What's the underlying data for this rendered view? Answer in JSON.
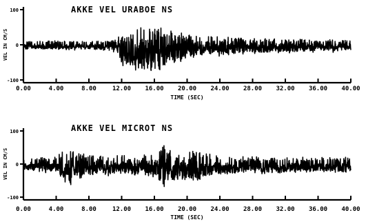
{
  "chart_data": [
    {
      "type": "line",
      "title": "AKKE VEL URABOE NS",
      "xlabel": "TIME (SEC)",
      "ylabel": "VEL IN CM/S",
      "xlim": [
        0,
        40
      ],
      "ylim": [
        -100,
        100
      ],
      "x_ticks": [
        "0.00",
        "4.00",
        "8.00",
        "12.00",
        "16.00",
        "20.00",
        "24.00",
        "28.00",
        "32.00",
        "36.00",
        "40.00"
      ],
      "y_ticks": [
        "-100",
        "0",
        "100"
      ],
      "grid": false,
      "envelope": {
        "x": [
          0,
          2,
          4,
          6,
          8,
          10,
          11.5,
          12,
          13,
          14,
          15,
          16,
          17,
          18,
          19,
          20,
          22,
          24,
          26,
          28,
          30,
          32,
          34,
          36,
          38,
          40
        ],
        "amplitude": [
          12,
          14,
          15,
          14,
          14,
          16,
          20,
          55,
          65,
          75,
          80,
          72,
          65,
          58,
          48,
          40,
          32,
          28,
          26,
          24,
          22,
          22,
          20,
          18,
          18,
          16
        ]
      }
    },
    {
      "type": "line",
      "title": "AKKE VEL MICROT NS",
      "xlabel": "TIME (SEC)",
      "ylabel": "VEL IN CM/S",
      "xlim": [
        0,
        40
      ],
      "ylim": [
        -100,
        100
      ],
      "x_ticks": [
        "0.00",
        "4.00",
        "8.00",
        "12.00",
        "16.00",
        "20.00",
        "24.00",
        "28.00",
        "32.00",
        "36.00",
        "40.00"
      ],
      "y_ticks": [
        "-100",
        "0",
        "100"
      ],
      "grid": false,
      "envelope": {
        "x": [
          0,
          2,
          4,
          5,
          6,
          7,
          8,
          10,
          12,
          14,
          16,
          17,
          18,
          19,
          20,
          21,
          22,
          24,
          26,
          28,
          30,
          32,
          34,
          36,
          38,
          40
        ],
        "amplitude": [
          18,
          22,
          30,
          55,
          52,
          40,
          35,
          30,
          32,
          35,
          40,
          70,
          55,
          45,
          60,
          55,
          45,
          35,
          30,
          28,
          26,
          28,
          26,
          24,
          26,
          24
        ]
      }
    }
  ]
}
